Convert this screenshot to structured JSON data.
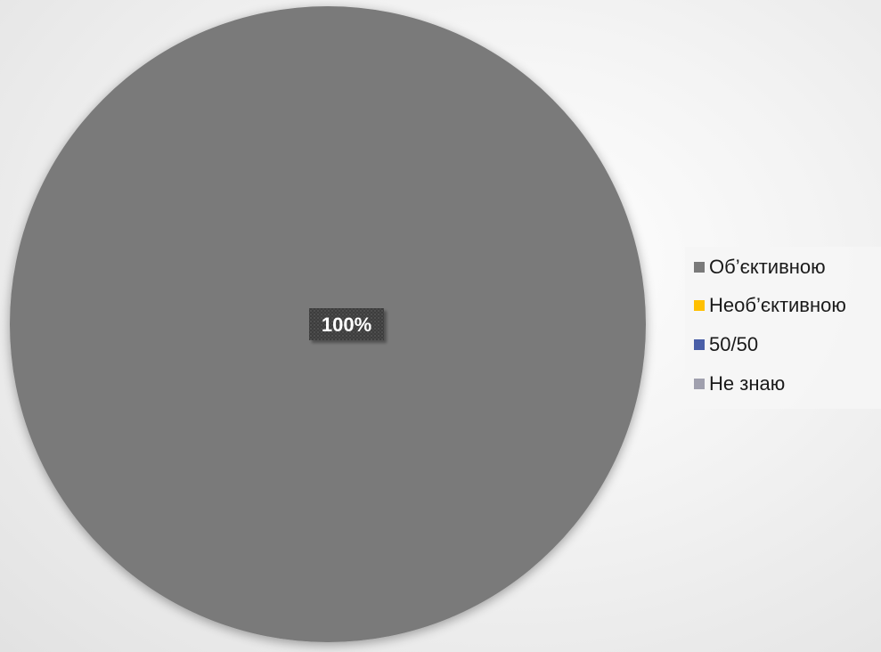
{
  "chart_data": {
    "type": "pie",
    "categories": [
      "Об’єктивною",
      "Необ’єктивною",
      "50/50",
      "Не знаю"
    ],
    "values": [
      100,
      0,
      0,
      0
    ],
    "data_labels": [
      "100%"
    ],
    "colors": [
      "#7a7a7a",
      "#ffc000",
      "#4a5fa8",
      "#a0a0ae"
    ],
    "legend_position": "right"
  }
}
